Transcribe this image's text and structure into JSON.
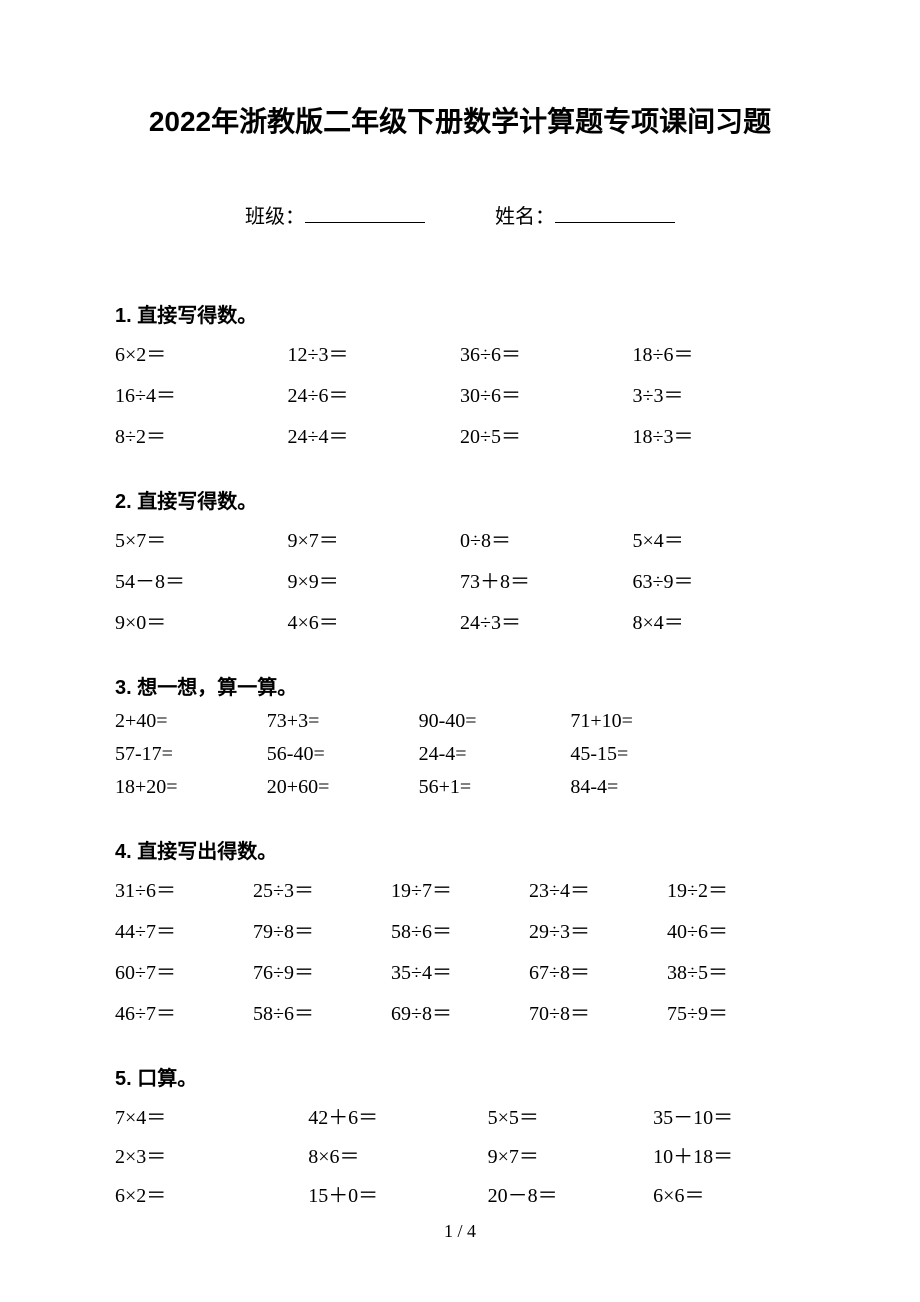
{
  "title": "2022年浙教版二年级下册数学计算题专项课间习题",
  "info": {
    "class_label": "班级：",
    "name_label": "姓名："
  },
  "sections": [
    {
      "heading": "1. 直接写得数。",
      "layout": "cols4",
      "rows": [
        [
          "6×2＝",
          "12÷3＝",
          "36÷6＝",
          "18÷6＝"
        ],
        [
          "16÷4＝",
          "24÷6＝",
          "30÷6＝",
          "3÷3＝"
        ],
        [
          "8÷2＝",
          "24÷4＝",
          "20÷5＝",
          "18÷3＝"
        ]
      ]
    },
    {
      "heading": "2. 直接写得数。",
      "layout": "cols4",
      "rows": [
        [
          "5×7＝",
          "9×7＝",
          "0÷8＝",
          "5×4＝"
        ],
        [
          "54－8＝",
          "9×9＝",
          "73＋8＝",
          "63÷9＝"
        ],
        [
          "9×0＝",
          "4×6＝",
          "24÷3＝",
          "8×4＝"
        ]
      ]
    },
    {
      "heading": "3. 想一想，算一算。",
      "layout": "cols4b",
      "rows": [
        [
          "2+40=",
          "73+3=",
          "90-40=",
          "71+10="
        ],
        [
          "57-17=",
          "56-40=",
          "24-4=",
          "45-15="
        ],
        [
          "18+20=",
          "20+60=",
          "56+1=",
          "84-4="
        ]
      ]
    },
    {
      "heading": "4. 直接写出得数。",
      "layout": "cols5",
      "rows": [
        [
          "31÷6＝",
          "25÷3＝",
          "19÷7＝",
          "23÷4＝",
          "19÷2＝"
        ],
        [
          "44÷7＝",
          "79÷8＝",
          "58÷6＝",
          "29÷3＝",
          "40÷6＝"
        ],
        [
          "60÷7＝",
          "76÷9＝",
          "35÷4＝",
          "67÷8＝",
          "38÷5＝"
        ],
        [
          "46÷7＝",
          "58÷6＝",
          "69÷8＝",
          "70÷8＝",
          "75÷9＝"
        ]
      ]
    },
    {
      "heading": "5. 口算。",
      "layout": "cols4c",
      "rows": [
        [
          "7×4＝",
          "42＋6＝",
          "5×5＝",
          "35－10＝"
        ],
        [
          "2×3＝",
          "8×6＝",
          "9×7＝",
          "10＋18＝"
        ],
        [
          "6×2＝",
          "15＋0＝",
          "20－8＝",
          "6×6＝"
        ]
      ]
    }
  ],
  "page_number": "1 / 4",
  "colors": {
    "text": "#000000",
    "background": "#ffffff"
  },
  "typography": {
    "title_fontsize_pt": 21,
    "body_fontsize_pt": 15,
    "heading_fontsize_pt": 15
  }
}
